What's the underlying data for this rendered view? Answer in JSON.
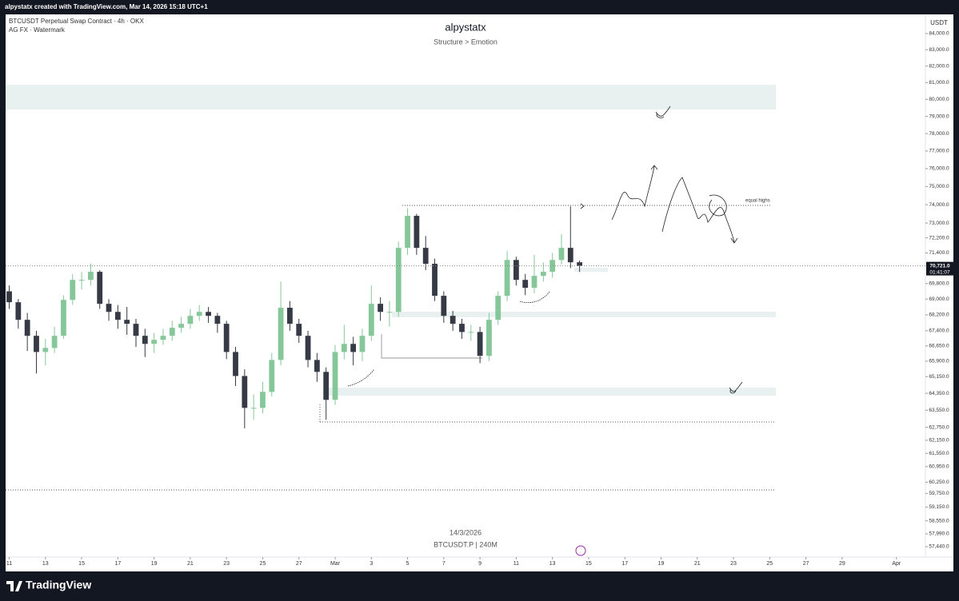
{
  "topbar": "alpystatx created with TradingView.com, Mar 14, 2026 15:18 UTC+1",
  "symbol_line": "BTCUSDT Perpetual Swap Contract · 4h · OKX",
  "indicator_line": "AG FX · Watermark",
  "watermark": {
    "date": "14/3/2026",
    "symbol": "BTCUSDT.P | 240M"
  },
  "annotations": {
    "equal_highs": "equal highs"
  },
  "footer": {
    "logo": "TradingView"
  },
  "chart_data": {
    "type": "candlestick",
    "title": "alpystatx",
    "subtitle": "Structure > Emotion",
    "y_axis_label": "USDT",
    "log": true,
    "ylim": [
      57000,
      85200
    ],
    "xlim": [
      -0.2,
      50.6
    ],
    "yticks": [
      {
        "value": 84000,
        "label": "84,000.0"
      },
      {
        "value": 83000,
        "label": "83,000.0"
      },
      {
        "value": 82000,
        "label": "82,000.0"
      },
      {
        "value": 81000,
        "label": "81,000.0"
      },
      {
        "value": 80000,
        "label": "80,000.0"
      },
      {
        "value": 79000,
        "label": "79,000.0"
      },
      {
        "value": 78000,
        "label": "78,000.0"
      },
      {
        "value": 77000,
        "label": "77,000.0"
      },
      {
        "value": 76000,
        "label": "76,000.0"
      },
      {
        "value": 75000,
        "label": "75,000.0"
      },
      {
        "value": 74000,
        "label": "74,000.0"
      },
      {
        "value": 73000,
        "label": "73,000.0"
      },
      {
        "value": 72200,
        "label": "72,200.0"
      },
      {
        "value": 71400,
        "label": "71,400.0"
      },
      {
        "value": 69800,
        "label": "69,800.0"
      },
      {
        "value": 69000,
        "label": "69,000.0"
      },
      {
        "value": 68200,
        "label": "68,200.0"
      },
      {
        "value": 67400,
        "label": "67,400.0"
      },
      {
        "value": 66650,
        "label": "66,650.0"
      },
      {
        "value": 65900,
        "label": "65,900.0"
      },
      {
        "value": 65150,
        "label": "65,150.0"
      },
      {
        "value": 64350,
        "label": "64,350.0"
      },
      {
        "value": 63550,
        "label": "63,550.0"
      },
      {
        "value": 62750,
        "label": "62,750.0"
      },
      {
        "value": 62150,
        "label": "62,150.0"
      },
      {
        "value": 61550,
        "label": "61,550.0"
      },
      {
        "value": 60950,
        "label": "60,950.0"
      },
      {
        "value": 60250,
        "label": "60,250.0"
      },
      {
        "value": 59750,
        "label": "59,750.0"
      },
      {
        "value": 59150,
        "label": "59,150.0"
      },
      {
        "value": 58550,
        "label": "58,550.0"
      },
      {
        "value": 57990,
        "label": "57,990.0"
      },
      {
        "value": 57440,
        "label": "57,440.0"
      }
    ],
    "xticks": [
      {
        "value": 0,
        "label": "11"
      },
      {
        "value": 2,
        "label": "13"
      },
      {
        "value": 4,
        "label": "15"
      },
      {
        "value": 6,
        "label": "17"
      },
      {
        "value": 8,
        "label": "19"
      },
      {
        "value": 10,
        "label": "21"
      },
      {
        "value": 12,
        "label": "23"
      },
      {
        "value": 14,
        "label": "25"
      },
      {
        "value": 16,
        "label": "27"
      },
      {
        "value": 18,
        "label": "Mar"
      },
      {
        "value": 20,
        "label": "3"
      },
      {
        "value": 22,
        "label": "5"
      },
      {
        "value": 24,
        "label": "7"
      },
      {
        "value": 26,
        "label": "9"
      },
      {
        "value": 28,
        "label": "11"
      },
      {
        "value": 30,
        "label": "13"
      },
      {
        "value": 32,
        "label": "15"
      },
      {
        "value": 34,
        "label": "17"
      },
      {
        "value": 36,
        "label": "19"
      },
      {
        "value": 38,
        "label": "21"
      },
      {
        "value": 40,
        "label": "23"
      },
      {
        "value": 42,
        "label": "25"
      },
      {
        "value": 44,
        "label": "27"
      },
      {
        "value": 46,
        "label": "29"
      },
      {
        "value": 49,
        "label": "Apr"
      }
    ],
    "up_color": "#86c79a",
    "down_color": "#363a45",
    "last_price": {
      "value": 70721,
      "label": "70,721.0",
      "countdown": "01:41:07"
    },
    "x": [
      0,
      0.5,
      1,
      1.5,
      2,
      2.5,
      3,
      3.5,
      4,
      4.5,
      5,
      5.5,
      6,
      6.5,
      7,
      7.5,
      8,
      8.5,
      9,
      9.5,
      10,
      10.5,
      11,
      11.5,
      12,
      12.5,
      13,
      13.5,
      14,
      14.5,
      15,
      15.5,
      16,
      16.5,
      17,
      17.5,
      18,
      18.5,
      19,
      19.5,
      20,
      20.5,
      21,
      21.5,
      22,
      22.5,
      23,
      23.5,
      24,
      24.5,
      25,
      25.5,
      26,
      26.5,
      27,
      27.5,
      28,
      28.5,
      29,
      29.5,
      30,
      30.5,
      31,
      31.5
    ],
    "open": [
      69400,
      68840,
      67950,
      67150,
      66350,
      66550,
      67150,
      68960,
      69990,
      69990,
      70410,
      68760,
      68350,
      67950,
      67750,
      67150,
      66750,
      66950,
      67150,
      67550,
      67750,
      68150,
      68350,
      68150,
      67750,
      66350,
      65180,
      63660,
      63660,
      64420,
      65960,
      68560,
      67750,
      67150,
      65960,
      65380,
      64040,
      66350,
      66750,
      66350,
      67150,
      68760,
      68350,
      68350,
      71670,
      73390,
      71670,
      70830,
      69170,
      68150,
      67750,
      67340,
      67340,
      66160,
      67950,
      69170,
      71030,
      69990,
      69580,
      70200,
      70410,
      71030,
      71670,
      70910
    ],
    "high": [
      69700,
      69000,
      68300,
      67400,
      67000,
      67600,
      69200,
      70300,
      70400,
      70830,
      70500,
      69000,
      68700,
      68600,
      68000,
      67500,
      67300,
      67500,
      67900,
      68100,
      68500,
      68700,
      68600,
      68300,
      67900,
      66600,
      65500,
      64300,
      64900,
      66300,
      69900,
      68900,
      68000,
      67400,
      66300,
      65600,
      66700,
      67700,
      67100,
      67500,
      69700,
      69100,
      68900,
      72000,
      73800,
      73500,
      72300,
      71100,
      69400,
      68400,
      68000,
      67700,
      67600,
      68300,
      69400,
      71500,
      71200,
      70300,
      71300,
      70900,
      71400,
      72400,
      73910,
      71000
    ],
    "low": [
      68500,
      67500,
      66400,
      65300,
      65700,
      66300,
      67000,
      68700,
      69500,
      69700,
      68500,
      67900,
      67500,
      67200,
      66600,
      66100,
      66300,
      66700,
      66900,
      67300,
      67500,
      67900,
      67800,
      67300,
      66000,
      64700,
      62700,
      63100,
      63400,
      64200,
      65700,
      67400,
      66800,
      65600,
      64900,
      63100,
      63800,
      66000,
      65700,
      65900,
      66900,
      67900,
      67600,
      68100,
      71300,
      71300,
      70500,
      68900,
      67800,
      67400,
      67000,
      66900,
      65800,
      65900,
      67700,
      68900,
      69700,
      69200,
      69300,
      69900,
      70100,
      70800,
      70600,
      70400
    ],
    "close": [
      68840,
      67950,
      67150,
      66350,
      66550,
      67150,
      68960,
      69990,
      69990,
      70410,
      68760,
      68350,
      67950,
      67750,
      67150,
      66750,
      66950,
      67150,
      67550,
      67750,
      68150,
      68350,
      68150,
      67750,
      66350,
      65180,
      63660,
      63660,
      64420,
      65960,
      68560,
      67750,
      67150,
      65960,
      65380,
      64040,
      66350,
      66750,
      66350,
      67150,
      68760,
      68350,
      68350,
      71670,
      73390,
      71670,
      70830,
      69170,
      68150,
      67750,
      67340,
      67340,
      66160,
      67950,
      69170,
      71030,
      69990,
      69580,
      70200,
      70410,
      71030,
      71670,
      70910,
      70721
    ]
  }
}
